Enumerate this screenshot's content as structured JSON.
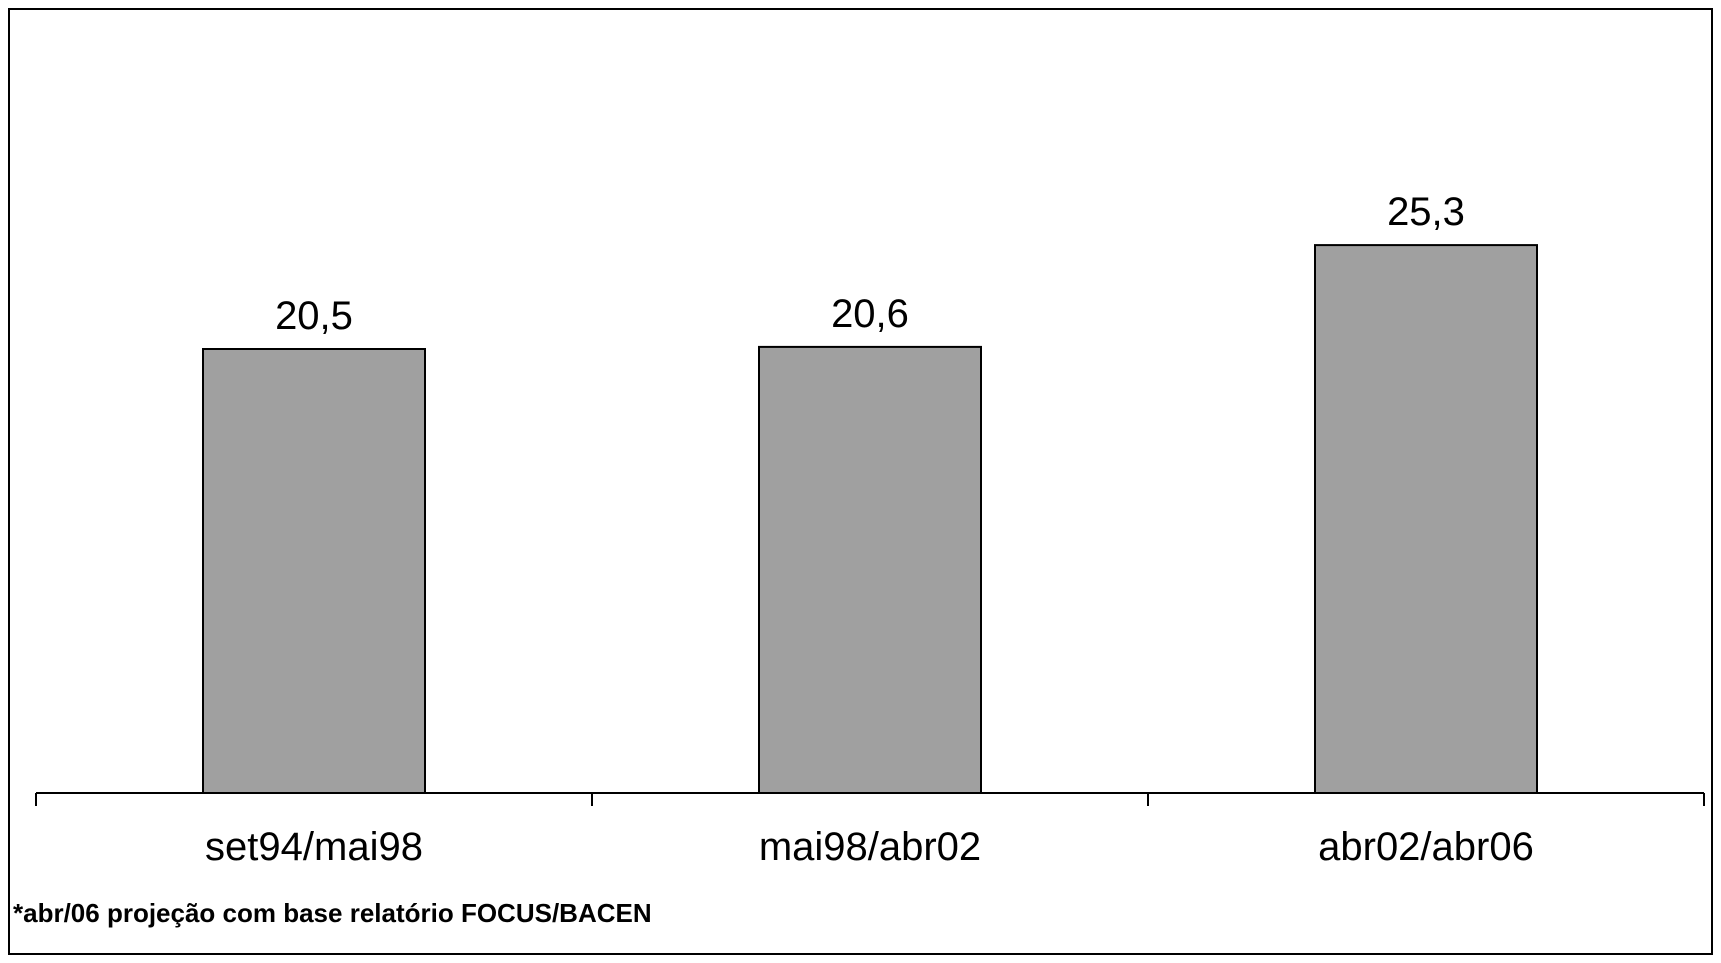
{
  "chart_data": {
    "type": "bar",
    "categories": [
      "set94/mai98",
      "mai98/abr02",
      "abr02/abr06"
    ],
    "values": [
      20.5,
      20.6,
      25.3
    ],
    "value_labels": [
      "20,5",
      "20,6",
      "25,3"
    ],
    "title": "",
    "xlabel": "",
    "ylabel": "",
    "ylim": [
      0,
      36.2
    ],
    "grid": false,
    "legend": "none",
    "colors": {
      "bar_fill": "#a0a0a0",
      "bar_stroke": "#000000",
      "axis": "#000000",
      "text": "#000000"
    }
  },
  "footnote": "*abr/06 projeção com base relatório FOCUS/BACEN"
}
